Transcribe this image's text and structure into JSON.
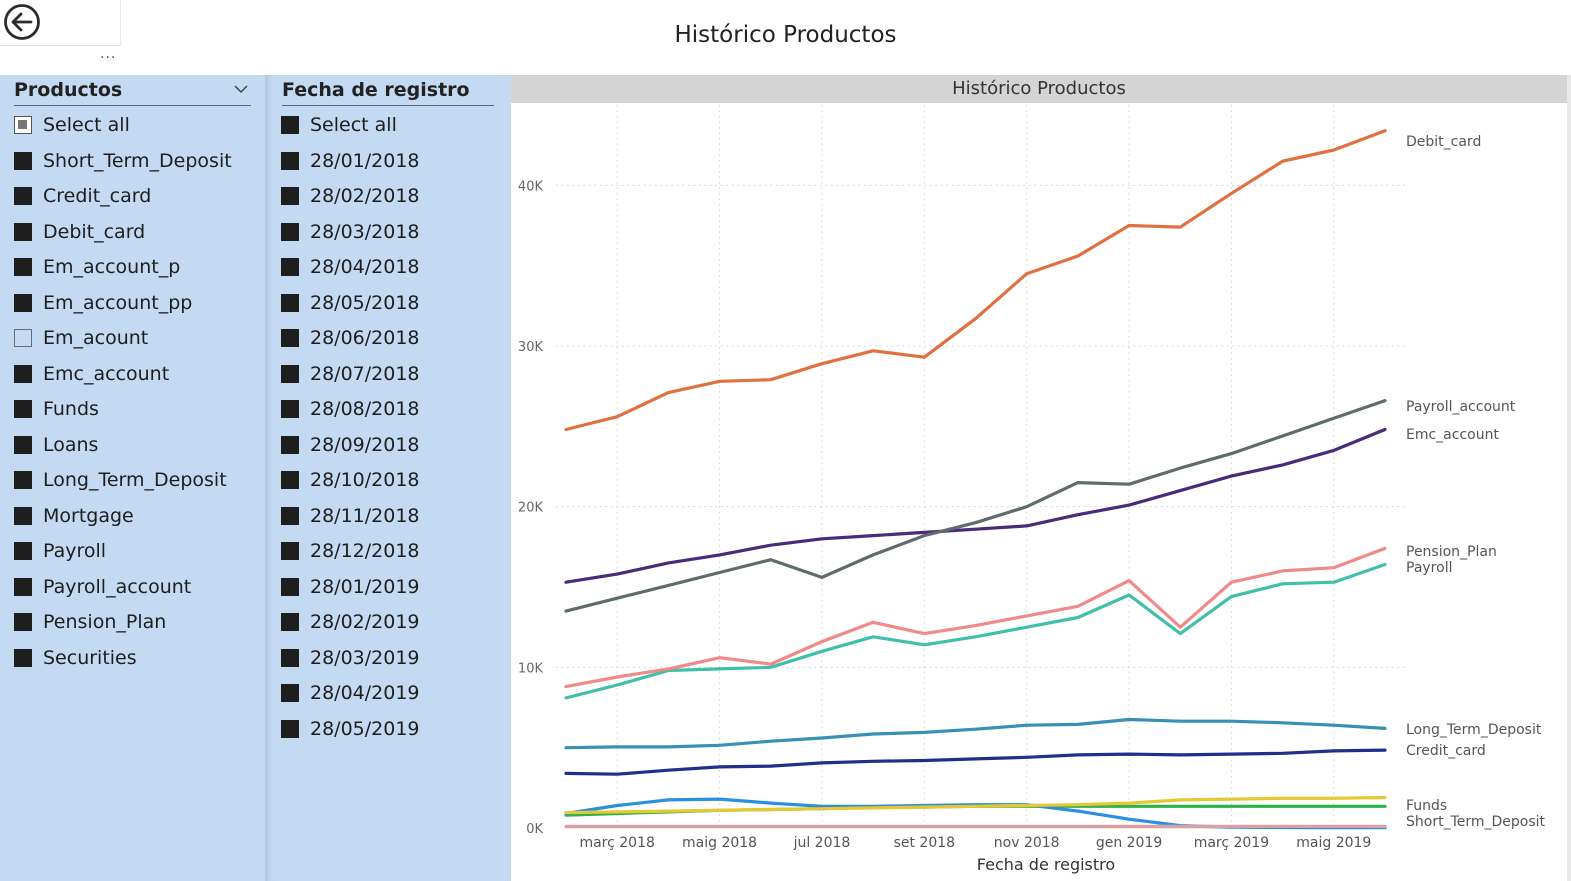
{
  "page": {
    "title": "Histórico Productos",
    "more_label": "..."
  },
  "slicer_products": {
    "header": "Productos",
    "items": [
      {
        "label": "Select all",
        "state": "partial"
      },
      {
        "label": "Short_Term_Deposit",
        "state": "on"
      },
      {
        "label": "Credit_card",
        "state": "on"
      },
      {
        "label": "Debit_card",
        "state": "on"
      },
      {
        "label": "Em_account_p",
        "state": "on"
      },
      {
        "label": "Em_account_pp",
        "state": "on"
      },
      {
        "label": "Em_acount",
        "state": "off"
      },
      {
        "label": "Emc_account",
        "state": "on"
      },
      {
        "label": "Funds",
        "state": "on"
      },
      {
        "label": "Loans",
        "state": "on"
      },
      {
        "label": "Long_Term_Deposit",
        "state": "on"
      },
      {
        "label": "Mortgage",
        "state": "on"
      },
      {
        "label": "Payroll",
        "state": "on"
      },
      {
        "label": "Payroll_account",
        "state": "on"
      },
      {
        "label": "Pension_Plan",
        "state": "on"
      },
      {
        "label": "Securities",
        "state": "on"
      }
    ]
  },
  "slicer_dates": {
    "header": "Fecha de registro",
    "items": [
      {
        "label": "Select all",
        "state": "on"
      },
      {
        "label": "28/01/2018",
        "state": "on"
      },
      {
        "label": "28/02/2018",
        "state": "on"
      },
      {
        "label": "28/03/2018",
        "state": "on"
      },
      {
        "label": "28/04/2018",
        "state": "on"
      },
      {
        "label": "28/05/2018",
        "state": "on"
      },
      {
        "label": "28/06/2018",
        "state": "on"
      },
      {
        "label": "28/07/2018",
        "state": "on"
      },
      {
        "label": "28/08/2018",
        "state": "on"
      },
      {
        "label": "28/09/2018",
        "state": "on"
      },
      {
        "label": "28/10/2018",
        "state": "on"
      },
      {
        "label": "28/11/2018",
        "state": "on"
      },
      {
        "label": "28/12/2018",
        "state": "on"
      },
      {
        "label": "28/01/2019",
        "state": "on"
      },
      {
        "label": "28/02/2019",
        "state": "on"
      },
      {
        "label": "28/03/2019",
        "state": "on"
      },
      {
        "label": "28/04/2019",
        "state": "on"
      },
      {
        "label": "28/05/2019",
        "state": "on"
      }
    ]
  },
  "chart_data": {
    "type": "line",
    "title": "Histórico Productos",
    "xlabel": "Fecha de registro",
    "ylabel": "",
    "ylim": [
      0,
      45000
    ],
    "yticks": [
      0,
      10000,
      20000,
      30000,
      40000
    ],
    "ytick_labels": [
      "0K",
      "10K",
      "20K",
      "30K",
      "40K"
    ],
    "grid": true,
    "legend": "end-of-line labels",
    "x": [
      "28/01/2018",
      "28/02/2018",
      "28/03/2018",
      "28/04/2018",
      "28/05/2018",
      "28/06/2018",
      "28/07/2018",
      "28/08/2018",
      "28/09/2018",
      "28/10/2018",
      "28/11/2018",
      "28/12/2018",
      "28/01/2019",
      "28/02/2019",
      "28/03/2019",
      "28/04/2019",
      "28/05/2019"
    ],
    "xtick_labels": [
      {
        "at": "28/02/2018",
        "label": "març 2018"
      },
      {
        "at": "28/04/2018",
        "label": "maig 2018"
      },
      {
        "at": "28/06/2018",
        "label": "jul 2018"
      },
      {
        "at": "28/08/2018",
        "label": "set 2018"
      },
      {
        "at": "28/10/2018",
        "label": "nov 2018"
      },
      {
        "at": "28/12/2018",
        "label": "gen 2019"
      },
      {
        "at": "28/02/2019",
        "label": "març 2019"
      },
      {
        "at": "28/04/2019",
        "label": "maig 2019"
      }
    ],
    "series": [
      {
        "name": "Debit_card",
        "color": "#E07040",
        "values": [
          24800,
          25600,
          27100,
          27800,
          27900,
          28900,
          29700,
          29300,
          31700,
          34500,
          35600,
          37500,
          37400,
          39500,
          41500,
          42200,
          43400
        ]
      },
      {
        "name": "Payroll_account",
        "color": "#5F6B6D",
        "values": [
          13500,
          14300,
          15100,
          15900,
          16700,
          15600,
          17000,
          18200,
          19000,
          20000,
          21500,
          21400,
          22400,
          23300,
          24400,
          25500,
          26600
        ]
      },
      {
        "name": "Emc_account",
        "color": "#4A2A7A",
        "values": [
          15300,
          15800,
          16500,
          17000,
          17600,
          18000,
          18200,
          18400,
          18600,
          18800,
          19500,
          20100,
          21000,
          21900,
          22600,
          23500,
          24800
        ]
      },
      {
        "name": "Pension_Plan",
        "color": "#F08A88",
        "values": [
          8800,
          9400,
          9900,
          10600,
          10200,
          11600,
          12800,
          12100,
          12600,
          13200,
          13800,
          15400,
          12500,
          15300,
          16000,
          16200,
          17400
        ]
      },
      {
        "name": "Payroll",
        "color": "#40BFAA",
        "values": [
          8100,
          8900,
          9800,
          9900,
          10000,
          11000,
          11900,
          11400,
          11900,
          12500,
          13100,
          14500,
          12100,
          14400,
          15200,
          15300,
          16400
        ]
      },
      {
        "name": "Long_Term_Deposit",
        "color": "#3A8FB5",
        "values": [
          5000,
          5050,
          5050,
          5150,
          5400,
          5600,
          5850,
          5950,
          6150,
          6400,
          6450,
          6750,
          6650,
          6650,
          6550,
          6400,
          6200
        ]
      },
      {
        "name": "Credit_card",
        "color": "#1F2F8C",
        "values": [
          3400,
          3350,
          3600,
          3800,
          3850,
          4050,
          4150,
          4200,
          4300,
          4400,
          4550,
          4600,
          4550,
          4600,
          4650,
          4800,
          4850
        ]
      },
      {
        "name": "Funds",
        "color": "#E6C832",
        "values": [
          950,
          1000,
          1050,
          1100,
          1150,
          1200,
          1250,
          1300,
          1350,
          1400,
          1450,
          1550,
          1750,
          1800,
          1850,
          1850,
          1900
        ]
      },
      {
        "name": "Short_Term_Deposit",
        "color": "#D9A0A8",
        "values": [
          100,
          100,
          100,
          100,
          100,
          100,
          100,
          100,
          100,
          100,
          100,
          100,
          100,
          100,
          100,
          100,
          100
        ]
      },
      {
        "color": "#2B8FE0",
        "values": [
          900,
          1400,
          1750,
          1800,
          1550,
          1350,
          1350,
          1400,
          1450,
          1450,
          1050,
          550,
          150,
          50,
          30,
          20,
          20
        ]
      },
      {
        "color": "#2BB24A",
        "values": [
          800,
          900,
          1000,
          1100,
          1150,
          1200,
          1300,
          1300,
          1350,
          1350,
          1350,
          1350,
          1350,
          1350,
          1350,
          1350,
          1350
        ]
      },
      {
        "color": "#E8DDB8",
        "values": [
          60,
          60,
          60,
          60,
          60,
          60,
          60,
          60,
          60,
          60,
          60,
          60,
          60,
          60,
          60,
          60,
          60
        ]
      }
    ]
  }
}
